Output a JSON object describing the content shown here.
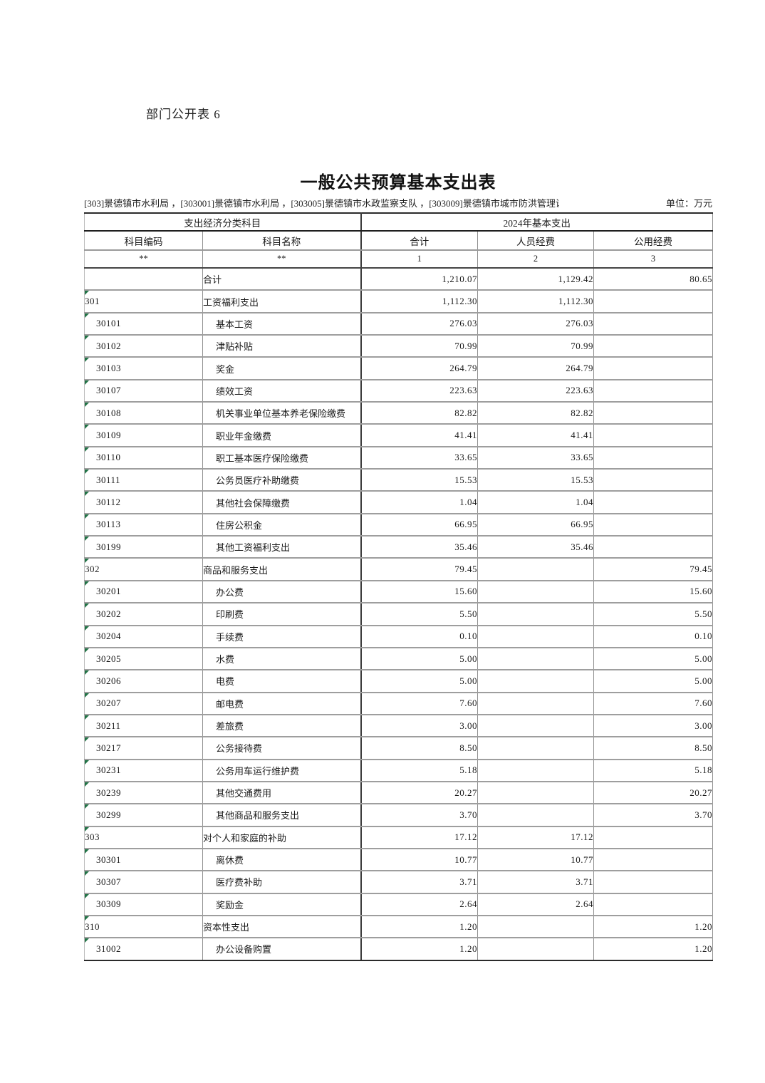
{
  "page": {
    "doc_label": "部门公开表 6",
    "title": "一般公共预算基本支出表",
    "org_line": "[303]景德镇市水利局 ，[303001]景德镇市水利局 ，[303005]景德镇市水政监察支队 ，[303009]景德镇市城市防洪管理",
    "org_line_clipped_char": "设",
    "unit_label": "单位：万元"
  },
  "colors": {
    "marker_green": "#217346",
    "grid_gray": "#9e9e9e",
    "grid_dark": "#2a2a2a"
  },
  "table": {
    "group_left": "支出经济分类科目",
    "group_right": "2024年基本支出",
    "columns": [
      "科目编码",
      "科目名称",
      "合计",
      "人员经费",
      "公用经费"
    ],
    "code_row": [
      "**",
      "**",
      "1",
      "2",
      "3"
    ],
    "rows": [
      {
        "code": "",
        "name": "合计",
        "total": "1,210.07",
        "personnel": "1,129.42",
        "public": "80.65",
        "level": 0,
        "marker": false
      },
      {
        "code": "301",
        "name": "工资福利支出",
        "total": "1,112.30",
        "personnel": "1,112.30",
        "public": "",
        "level": 0,
        "marker": true
      },
      {
        "code": "30101",
        "name": "基本工资",
        "total": "276.03",
        "personnel": "276.03",
        "public": "",
        "level": 1,
        "marker": true
      },
      {
        "code": "30102",
        "name": "津贴补贴",
        "total": "70.99",
        "personnel": "70.99",
        "public": "",
        "level": 1,
        "marker": true
      },
      {
        "code": "30103",
        "name": "奖金",
        "total": "264.79",
        "personnel": "264.79",
        "public": "",
        "level": 1,
        "marker": true
      },
      {
        "code": "30107",
        "name": "绩效工资",
        "total": "223.63",
        "personnel": "223.63",
        "public": "",
        "level": 1,
        "marker": true
      },
      {
        "code": "30108",
        "name": "机关事业单位基本养老保险缴费",
        "total": "82.82",
        "personnel": "82.82",
        "public": "",
        "level": 1,
        "marker": true
      },
      {
        "code": "30109",
        "name": "职业年金缴费",
        "total": "41.41",
        "personnel": "41.41",
        "public": "",
        "level": 1,
        "marker": true
      },
      {
        "code": "30110",
        "name": "职工基本医疗保险缴费",
        "total": "33.65",
        "personnel": "33.65",
        "public": "",
        "level": 1,
        "marker": true
      },
      {
        "code": "30111",
        "name": "公务员医疗补助缴费",
        "total": "15.53",
        "personnel": "15.53",
        "public": "",
        "level": 1,
        "marker": true
      },
      {
        "code": "30112",
        "name": "其他社会保障缴费",
        "total": "1.04",
        "personnel": "1.04",
        "public": "",
        "level": 1,
        "marker": true
      },
      {
        "code": "30113",
        "name": "住房公积金",
        "total": "66.95",
        "personnel": "66.95",
        "public": "",
        "level": 1,
        "marker": true
      },
      {
        "code": "30199",
        "name": "其他工资福利支出",
        "total": "35.46",
        "personnel": "35.46",
        "public": "",
        "level": 1,
        "marker": true
      },
      {
        "code": "302",
        "name": "商品和服务支出",
        "total": "79.45",
        "personnel": "",
        "public": "79.45",
        "level": 0,
        "marker": true
      },
      {
        "code": "30201",
        "name": "办公费",
        "total": "15.60",
        "personnel": "",
        "public": "15.60",
        "level": 1,
        "marker": true
      },
      {
        "code": "30202",
        "name": "印刷费",
        "total": "5.50",
        "personnel": "",
        "public": "5.50",
        "level": 1,
        "marker": true
      },
      {
        "code": "30204",
        "name": "手续费",
        "total": "0.10",
        "personnel": "",
        "public": "0.10",
        "level": 1,
        "marker": true
      },
      {
        "code": "30205",
        "name": "水费",
        "total": "5.00",
        "personnel": "",
        "public": "5.00",
        "level": 1,
        "marker": true
      },
      {
        "code": "30206",
        "name": "电费",
        "total": "5.00",
        "personnel": "",
        "public": "5.00",
        "level": 1,
        "marker": true
      },
      {
        "code": "30207",
        "name": "邮电费",
        "total": "7.60",
        "personnel": "",
        "public": "7.60",
        "level": 1,
        "marker": true
      },
      {
        "code": "30211",
        "name": "差旅费",
        "total": "3.00",
        "personnel": "",
        "public": "3.00",
        "level": 1,
        "marker": true
      },
      {
        "code": "30217",
        "name": "公务接待费",
        "total": "8.50",
        "personnel": "",
        "public": "8.50",
        "level": 1,
        "marker": true
      },
      {
        "code": "30231",
        "name": "公务用车运行维护费",
        "total": "5.18",
        "personnel": "",
        "public": "5.18",
        "level": 1,
        "marker": true
      },
      {
        "code": "30239",
        "name": "其他交通费用",
        "total": "20.27",
        "personnel": "",
        "public": "20.27",
        "level": 1,
        "marker": true
      },
      {
        "code": "30299",
        "name": "其他商品和服务支出",
        "total": "3.70",
        "personnel": "",
        "public": "3.70",
        "level": 1,
        "marker": true
      },
      {
        "code": "303",
        "name": "对个人和家庭的补助",
        "total": "17.12",
        "personnel": "17.12",
        "public": "",
        "level": 0,
        "marker": true
      },
      {
        "code": "30301",
        "name": "离休费",
        "total": "10.77",
        "personnel": "10.77",
        "public": "",
        "level": 1,
        "marker": true
      },
      {
        "code": "30307",
        "name": "医疗费补助",
        "total": "3.71",
        "personnel": "3.71",
        "public": "",
        "level": 1,
        "marker": true
      },
      {
        "code": "30309",
        "name": "奖励金",
        "total": "2.64",
        "personnel": "2.64",
        "public": "",
        "level": 1,
        "marker": true
      },
      {
        "code": "310",
        "name": "资本性支出",
        "total": "1.20",
        "personnel": "",
        "public": "1.20",
        "level": 0,
        "marker": true
      },
      {
        "code": "31002",
        "name": "办公设备购置",
        "total": "1.20",
        "personnel": "",
        "public": "1.20",
        "level": 1,
        "marker": true
      }
    ]
  }
}
